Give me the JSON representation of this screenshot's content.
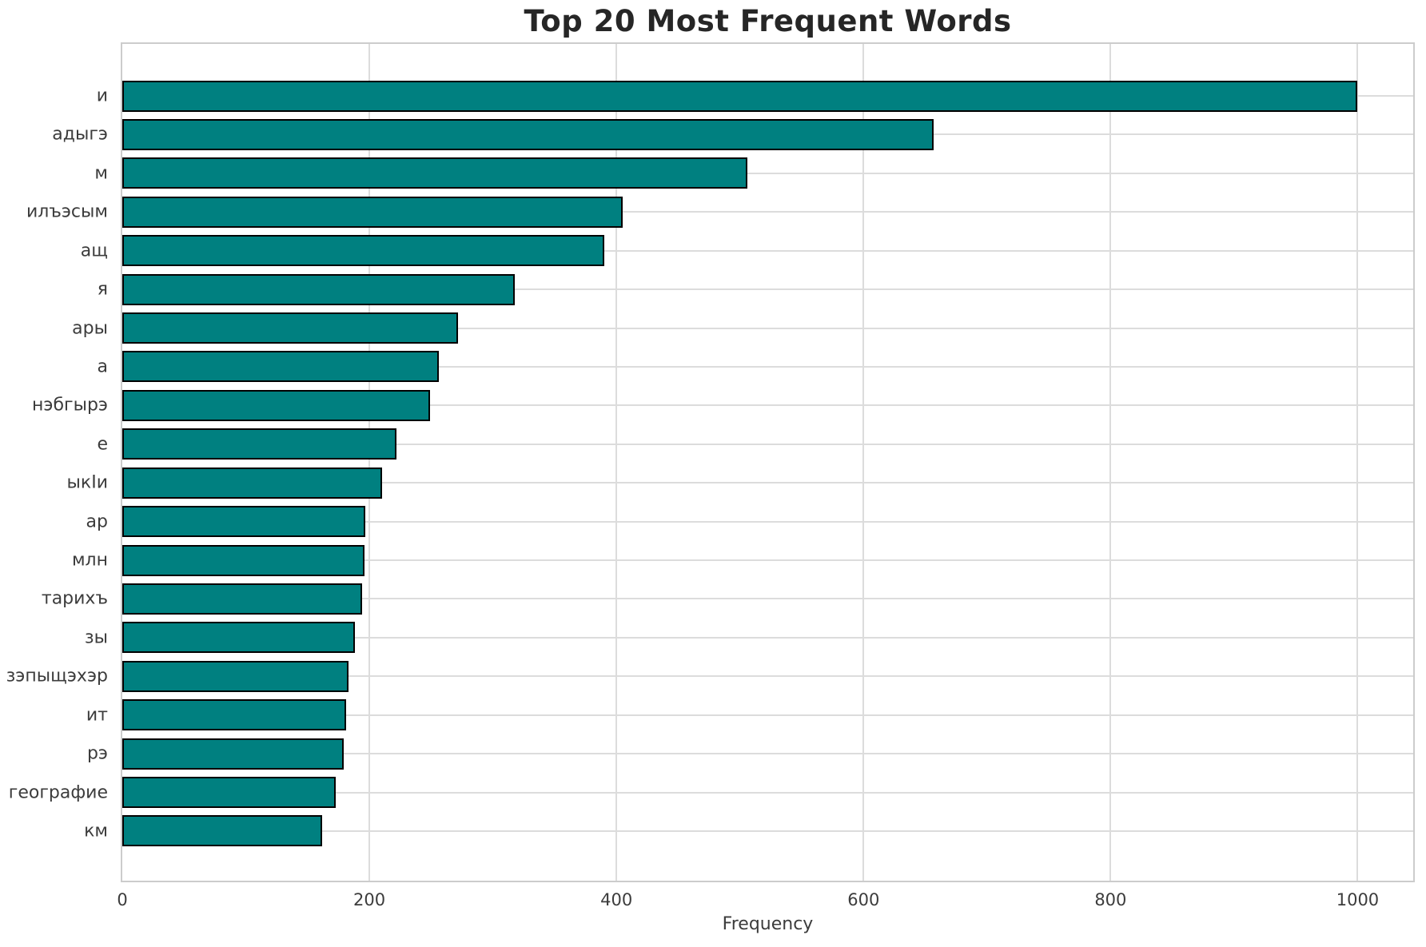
{
  "chart_data": {
    "type": "bar",
    "orientation": "horizontal",
    "title": "Top 20 Most Frequent Words",
    "xlabel": "Frequency",
    "ylabel": "",
    "categories": [
      "и",
      "адыгэ",
      "м",
      "илъэсым",
      "ащ",
      "я",
      "ары",
      "а",
      "нэбгырэ",
      "е",
      "ыкIи",
      "ар",
      "млн",
      "тарихъ",
      "зы",
      "зэпыщэхэр",
      "ит",
      "рэ",
      "географие",
      "км"
    ],
    "values": [
      1000,
      657,
      506,
      405,
      390,
      318,
      272,
      256,
      249,
      222,
      210,
      197,
      196,
      194,
      188,
      183,
      181,
      179,
      173,
      162
    ],
    "x_ticks": [
      0,
      200,
      400,
      600,
      800,
      1000
    ],
    "xlim": [
      0,
      1045
    ],
    "grid": true,
    "legend": null,
    "bar_color": "#008080",
    "bar_edge_color": "#000000",
    "grid_color": "#dcdcdc",
    "spine_color": "#cccccc",
    "title_color": "#262626",
    "tick_label_color": "#3c3c3c",
    "background_color": "#ffffff"
  }
}
